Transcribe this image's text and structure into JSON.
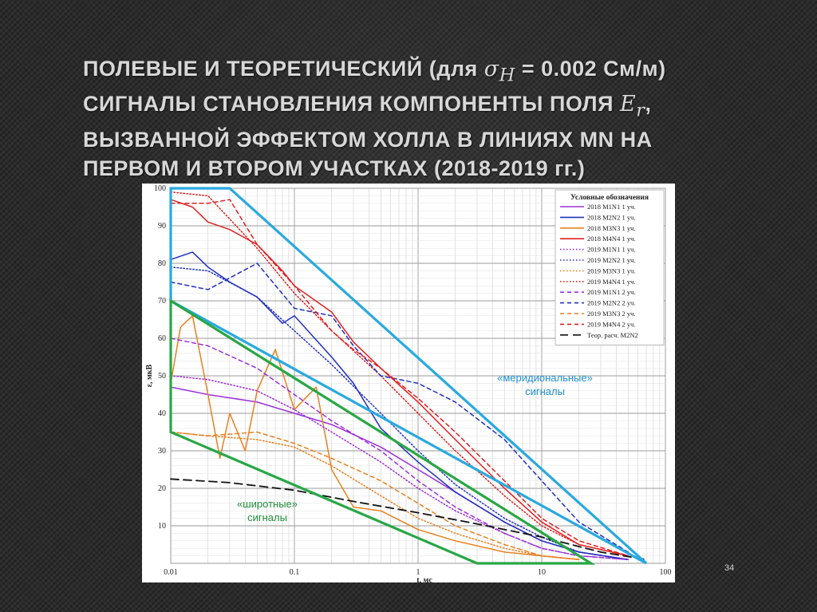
{
  "slide": {
    "title_lines": [
      {
        "before": "ПОЛЕВЫЕ И ТЕОРЕТИЧЕСКИЙ (для ",
        "sym": "σ",
        "sub": "H",
        "after": " = 0.002 См/м)"
      },
      {
        "before": "СИГНАЛЫ СТАНОВЛЕНИЯ КОМПОНЕНТЫ ПОЛЯ ",
        "sym": "E",
        "sub": "r",
        "after": ","
      },
      {
        "before": "ВЫЗВАННОЙ ЭФФЕКТОМ ХОЛЛА В ЛИНИЯХ MN НА",
        "sym": "",
        "sub": "",
        "after": ""
      },
      {
        "before": "ПЕРВОМ И ВТОРОМ УЧАСТКАХ (2018-2019 гг.)",
        "sym": "",
        "sub": "",
        "after": ""
      }
    ],
    "page_number": "34"
  },
  "colors": {
    "meridional_box": "#29a9e0",
    "latitudinal_box": "#28a745",
    "meridional_label": "#1f8fd0",
    "latitudinal_label": "#1e8f3a"
  },
  "chart_data": {
    "type": "line",
    "x_scale": "log",
    "y_scale": "linear",
    "xlim": [
      0.01,
      100
    ],
    "ylim": [
      0,
      100
    ],
    "xlabel": "t, мс",
    "ylabel": "ε, мкВ",
    "x_ticks": [
      {
        "v": 0.01,
        "label": "0.01"
      },
      {
        "v": 0.1,
        "label": "0.1"
      },
      {
        "v": 1,
        "label": "1"
      },
      {
        "v": 10,
        "label": "10"
      },
      {
        "v": 100,
        "label": "100"
      }
    ],
    "y_ticks": [
      10,
      20,
      30,
      40,
      50,
      60,
      70,
      80,
      90,
      100
    ],
    "grid": true,
    "legend_title": "Условные обозначения",
    "legend_position": "top-right",
    "series": [
      {
        "name": "2018 M1N1 1 уч.",
        "color": "#9b30d9",
        "style": "solid",
        "x": [
          0.01,
          0.02,
          0.05,
          0.1,
          0.2,
          0.5,
          1,
          2,
          5,
          10,
          20,
          50
        ],
        "y": [
          47,
          45,
          43,
          40,
          37,
          31,
          25,
          19,
          11,
          6,
          3,
          1
        ]
      },
      {
        "name": "2018 M2N2 1 уч.",
        "color": "#2030c0",
        "style": "solid",
        "x": [
          0.01,
          0.015,
          0.02,
          0.03,
          0.05,
          0.08,
          0.1,
          0.2,
          0.3,
          0.5,
          1,
          2,
          5,
          10,
          20,
          50
        ],
        "y": [
          81,
          83,
          79,
          75,
          71,
          64,
          66,
          55,
          48,
          36,
          27,
          19,
          11,
          6,
          3,
          1
        ]
      },
      {
        "name": "2018 M3N3 1 уч.",
        "color": "#e88020",
        "style": "solid",
        "x": [
          0.01,
          0.012,
          0.015,
          0.02,
          0.025,
          0.03,
          0.04,
          0.05,
          0.07,
          0.1,
          0.15,
          0.2,
          0.3,
          0.5,
          1,
          2,
          5,
          10,
          20
        ],
        "y": [
          48,
          63,
          66,
          45,
          28,
          40,
          30,
          46,
          57,
          41,
          47,
          25,
          15,
          14,
          9,
          6,
          3,
          2,
          1
        ]
      },
      {
        "name": "2018 M4N4 1 уч.",
        "color": "#e02020",
        "style": "solid",
        "x": [
          0.01,
          0.015,
          0.02,
          0.03,
          0.05,
          0.08,
          0.1,
          0.2,
          0.3,
          0.5,
          1,
          2,
          5,
          10,
          20,
          50
        ],
        "y": [
          97,
          95,
          91,
          89,
          85,
          78,
          74,
          67,
          59,
          52,
          43,
          33,
          20,
          11,
          5,
          2
        ]
      },
      {
        "name": "2019 M1N1 1 уч.",
        "color": "#9b30d9",
        "style": "dotted",
        "x": [
          0.01,
          0.02,
          0.05,
          0.1,
          0.2,
          0.5,
          1,
          2,
          5,
          10,
          20,
          50
        ],
        "y": [
          50,
          49,
          46,
          41,
          35,
          27,
          20,
          14,
          8,
          4,
          2,
          1
        ]
      },
      {
        "name": "2019 M2N2 1 уч.",
        "color": "#2030c0",
        "style": "dotted",
        "x": [
          0.01,
          0.02,
          0.05,
          0.1,
          0.2,
          0.5,
          1,
          2,
          5,
          10,
          20,
          50
        ],
        "y": [
          79,
          78,
          71,
          62,
          53,
          40,
          30,
          21,
          12,
          7,
          3,
          1
        ]
      },
      {
        "name": "2019 M3N3 1 уч.",
        "color": "#e88020",
        "style": "dotted",
        "x": [
          0.01,
          0.02,
          0.05,
          0.1,
          0.2,
          0.5,
          1,
          2,
          5,
          10,
          20
        ],
        "y": [
          35,
          34,
          33,
          31,
          26,
          18,
          12,
          8,
          4,
          2,
          1
        ]
      },
      {
        "name": "2019 M4N4 1 уч.",
        "color": "#e02020",
        "style": "dotted",
        "x": [
          0.01,
          0.02,
          0.05,
          0.1,
          0.2,
          0.5,
          1,
          2,
          5,
          10,
          20,
          50
        ],
        "y": [
          99,
          98,
          84,
          72,
          62,
          50,
          40,
          30,
          18,
          10,
          5,
          2
        ]
      },
      {
        "name": "2019 M1N1 2 уч.",
        "color": "#9b30d9",
        "style": "dashed",
        "x": [
          0.01,
          0.02,
          0.05,
          0.1,
          0.2,
          0.5,
          1,
          2,
          5,
          10,
          20,
          50
        ],
        "y": [
          60,
          58,
          52,
          45,
          38,
          30,
          22,
          15,
          8,
          4,
          2,
          1
        ]
      },
      {
        "name": "2019 M2N2 2 уч.",
        "color": "#2030c0",
        "style": "dashed",
        "x": [
          0.01,
          0.02,
          0.05,
          0.1,
          0.2,
          0.3,
          0.5,
          1,
          2,
          5,
          10,
          20,
          50
        ],
        "y": [
          75,
          73,
          80,
          68,
          66,
          58,
          50,
          48,
          43,
          33,
          22,
          11,
          3
        ]
      },
      {
        "name": "2019 M3N3 2 уч.",
        "color": "#e88020",
        "style": "dashed",
        "x": [
          0.01,
          0.02,
          0.05,
          0.1,
          0.2,
          0.5,
          1,
          2,
          5,
          10,
          20
        ],
        "y": [
          35,
          34,
          35,
          32,
          28,
          22,
          16,
          10,
          5,
          2,
          1
        ]
      },
      {
        "name": "2019 M4N4 2 уч.",
        "color": "#e02020",
        "style": "dashed",
        "x": [
          0.01,
          0.02,
          0.03,
          0.05,
          0.1,
          0.2,
          0.3,
          0.5,
          1,
          2,
          5,
          10,
          20,
          50
        ],
        "y": [
          96,
          96,
          97,
          85,
          74,
          62,
          57,
          52,
          44,
          35,
          22,
          12,
          6,
          2
        ]
      },
      {
        "name": "Теор. расч. M2N2",
        "color": "#111111",
        "style": "longdash",
        "x": [
          0.01,
          0.03,
          0.1,
          0.3,
          1,
          3,
          10,
          30,
          70
        ],
        "y": [
          22.5,
          21.5,
          19.5,
          16.5,
          13.5,
          10.5,
          7,
          3,
          1
        ]
      }
    ],
    "annotations": [
      {
        "text": "«меридиональные» сигналы",
        "lines": [
          "«меридиональные»",
          "сигналы"
        ],
        "color": "#1f8fd0",
        "box": {
          "color": "#29a9e0",
          "points": [
            [
              0.01,
              100
            ],
            [
              0.03,
              100
            ],
            [
              70,
              0
            ],
            [
              0.01,
              70
            ]
          ]
        }
      },
      {
        "text": "«широтные» сигналы",
        "lines": [
          "«широтные»",
          "сигналы"
        ],
        "color": "#1e8f3a",
        "box": {
          "color": "#28a745",
          "points": [
            [
              0.01,
              70
            ],
            [
              25,
              0
            ],
            [
              3,
              0
            ],
            [
              0.01,
              35
            ]
          ]
        }
      }
    ]
  }
}
